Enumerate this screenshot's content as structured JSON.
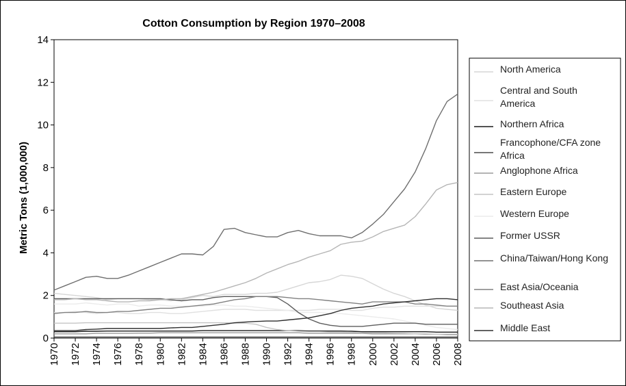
{
  "chart_data": {
    "type": "line",
    "title": "Cotton Consumption by Region 1970–2008",
    "xlabel": "",
    "ylabel": "Metric Tons (1,000,000)",
    "xlim": [
      1970,
      2008
    ],
    "ylim": [
      0,
      14
    ],
    "y_ticks": [
      "0",
      "2",
      "4",
      "6",
      "8",
      "10",
      "12",
      "14"
    ],
    "x_ticks": [
      "1970",
      "1972",
      "1974",
      "1976",
      "1978",
      "1980",
      "1982",
      "1984",
      "1986",
      "1988",
      "1990",
      "1992",
      "1994",
      "1996",
      "1998",
      "2000",
      "2002",
      "2004",
      "2006",
      "2008"
    ],
    "grid": "horizontal",
    "legend_position": "right",
    "x": [
      1970,
      1971,
      1972,
      1973,
      1974,
      1975,
      1976,
      1977,
      1978,
      1979,
      1980,
      1981,
      1982,
      1983,
      1984,
      1985,
      1986,
      1987,
      1988,
      1989,
      1990,
      1991,
      1992,
      1993,
      1994,
      1995,
      1996,
      1997,
      1998,
      1999,
      2000,
      2001,
      2002,
      2003,
      2004,
      2005,
      2006,
      2007,
      2008
    ],
    "series": [
      {
        "name": "North America",
        "color": "#d6d6d6",
        "values": [
          2.1,
          2.05,
          2.0,
          1.95,
          1.9,
          1.8,
          1.85,
          1.85,
          1.85,
          1.8,
          1.8,
          1.75,
          1.8,
          1.9,
          2.0,
          1.95,
          2.05,
          2.05,
          2.05,
          2.1,
          2.1,
          2.15,
          2.3,
          2.45,
          2.6,
          2.65,
          2.75,
          2.95,
          2.9,
          2.8,
          2.55,
          2.3,
          2.1,
          1.95,
          1.75,
          1.55,
          1.4,
          1.35,
          1.3
        ]
      },
      {
        "name": "Central and South America",
        "color": "#e0e0e0",
        "values": [
          1.2,
          1.2,
          1.25,
          1.2,
          1.15,
          1.2,
          1.2,
          1.15,
          1.15,
          1.2,
          1.2,
          1.15,
          1.15,
          1.2,
          1.25,
          1.3,
          1.35,
          1.35,
          1.35,
          1.3,
          1.3,
          1.3,
          1.3,
          1.3,
          1.3,
          1.35,
          1.35,
          1.35,
          1.3,
          1.3,
          1.4,
          1.45,
          1.45,
          1.5,
          1.5,
          1.5,
          1.5,
          1.5,
          1.5
        ]
      },
      {
        "name": "Northern Africa",
        "color": "#1a1a1a",
        "values": [
          0.3,
          0.3,
          0.3,
          0.32,
          0.32,
          0.33,
          0.33,
          0.33,
          0.33,
          0.33,
          0.33,
          0.33,
          0.33,
          0.33,
          0.35,
          0.35,
          0.35,
          0.35,
          0.35,
          0.35,
          0.35,
          0.35,
          0.35,
          0.35,
          0.33,
          0.33,
          0.33,
          0.33,
          0.32,
          0.3,
          0.3,
          0.3,
          0.3,
          0.3,
          0.3,
          0.3,
          0.28,
          0.28,
          0.28
        ]
      },
      {
        "name": "Francophone/CFA zone Africa",
        "color": "#4a4a4a",
        "values": [
          0.05,
          0.05,
          0.05,
          0.05,
          0.05,
          0.05,
          0.05,
          0.05,
          0.05,
          0.05,
          0.05,
          0.05,
          0.05,
          0.05,
          0.05,
          0.05,
          0.05,
          0.05,
          0.05,
          0.05,
          0.05,
          0.05,
          0.05,
          0.05,
          0.05,
          0.05,
          0.05,
          0.05,
          0.05,
          0.05,
          0.05,
          0.05,
          0.05,
          0.05,
          0.05,
          0.05,
          0.05,
          0.05,
          0.05
        ]
      },
      {
        "name": "Anglophone Africa",
        "color": "#9a9a9a",
        "values": [
          0.2,
          0.2,
          0.2,
          0.2,
          0.22,
          0.22,
          0.22,
          0.22,
          0.23,
          0.23,
          0.25,
          0.25,
          0.25,
          0.25,
          0.25,
          0.25,
          0.25,
          0.25,
          0.25,
          0.25,
          0.25,
          0.25,
          0.25,
          0.25,
          0.22,
          0.22,
          0.22,
          0.22,
          0.22,
          0.22,
          0.2,
          0.2,
          0.2,
          0.2,
          0.2,
          0.18,
          0.18,
          0.18,
          0.18
        ]
      },
      {
        "name": "Eastern Europe",
        "color": "#c4c4c4",
        "values": [
          0.7,
          0.7,
          0.7,
          0.72,
          0.72,
          0.72,
          0.72,
          0.72,
          0.72,
          0.72,
          0.72,
          0.72,
          0.72,
          0.72,
          0.72,
          0.72,
          0.72,
          0.7,
          0.7,
          0.65,
          0.5,
          0.4,
          0.35,
          0.32,
          0.3,
          0.3,
          0.28,
          0.28,
          0.27,
          0.25,
          0.25,
          0.25,
          0.23,
          0.22,
          0.2,
          0.2,
          0.18,
          0.15,
          0.15
        ]
      },
      {
        "name": "Western Europe",
        "color": "#ebebeb",
        "values": [
          1.6,
          1.6,
          1.6,
          1.65,
          1.6,
          1.55,
          1.6,
          1.6,
          1.5,
          1.55,
          1.55,
          1.5,
          1.5,
          1.5,
          1.5,
          1.55,
          1.55,
          1.5,
          1.5,
          1.45,
          1.4,
          1.35,
          1.3,
          1.2,
          1.2,
          1.2,
          1.15,
          1.15,
          1.1,
          1.05,
          1.0,
          0.95,
          0.9,
          0.8,
          0.7,
          0.6,
          0.5,
          0.45,
          0.4
        ]
      },
      {
        "name": "Former USSR",
        "color": "#5c5c5c",
        "values": [
          1.85,
          1.85,
          1.85,
          1.85,
          1.85,
          1.85,
          1.85,
          1.85,
          1.85,
          1.85,
          1.85,
          1.8,
          1.75,
          1.8,
          1.8,
          1.9,
          1.95,
          1.95,
          1.95,
          1.95,
          1.95,
          1.9,
          1.6,
          1.2,
          0.9,
          0.7,
          0.6,
          0.55,
          0.55,
          0.55,
          0.6,
          0.65,
          0.7,
          0.7,
          0.7,
          0.65,
          0.65,
          0.65,
          0.65
        ]
      },
      {
        "name": "China/Taiwan/Hong Kong",
        "color": "#6e6e6e",
        "values": [
          2.25,
          2.45,
          2.65,
          2.85,
          2.9,
          2.8,
          2.8,
          2.95,
          3.15,
          3.35,
          3.55,
          3.75,
          3.95,
          3.95,
          3.9,
          4.3,
          5.1,
          5.15,
          4.95,
          4.85,
          4.75,
          4.75,
          4.95,
          5.05,
          4.9,
          4.8,
          4.8,
          4.8,
          4.7,
          4.95,
          5.35,
          5.8,
          6.4,
          7.0,
          7.8,
          8.9,
          10.2,
          11.1,
          11.45
        ]
      },
      {
        "name": "East Asia/Oceania",
        "color": "#808080",
        "values": [
          1.15,
          1.2,
          1.2,
          1.25,
          1.2,
          1.2,
          1.25,
          1.25,
          1.3,
          1.35,
          1.4,
          1.4,
          1.45,
          1.5,
          1.55,
          1.6,
          1.7,
          1.8,
          1.85,
          1.95,
          1.95,
          1.95,
          1.9,
          1.85,
          1.85,
          1.8,
          1.75,
          1.7,
          1.65,
          1.6,
          1.7,
          1.7,
          1.7,
          1.7,
          1.6,
          1.6,
          1.55,
          1.5,
          1.5
        ]
      },
      {
        "name": "Southeast Asia",
        "color": "#b5b5b5",
        "values": [
          1.8,
          1.8,
          1.85,
          1.8,
          1.8,
          1.75,
          1.7,
          1.7,
          1.75,
          1.75,
          1.8,
          1.85,
          1.85,
          1.95,
          2.05,
          2.15,
          2.3,
          2.45,
          2.6,
          2.8,
          3.05,
          3.25,
          3.45,
          3.6,
          3.8,
          3.95,
          4.1,
          4.4,
          4.5,
          4.55,
          4.75,
          5.0,
          5.15,
          5.3,
          5.7,
          6.3,
          6.95,
          7.2,
          7.3
        ]
      },
      {
        "name": "Middle East",
        "color": "#2e2e2e",
        "values": [
          0.35,
          0.35,
          0.35,
          0.4,
          0.42,
          0.45,
          0.45,
          0.45,
          0.45,
          0.45,
          0.45,
          0.48,
          0.5,
          0.5,
          0.55,
          0.6,
          0.65,
          0.72,
          0.75,
          0.78,
          0.8,
          0.8,
          0.85,
          0.9,
          0.95,
          1.05,
          1.15,
          1.3,
          1.4,
          1.45,
          1.5,
          1.6,
          1.65,
          1.7,
          1.75,
          1.8,
          1.85,
          1.85,
          1.8
        ]
      }
    ]
  }
}
